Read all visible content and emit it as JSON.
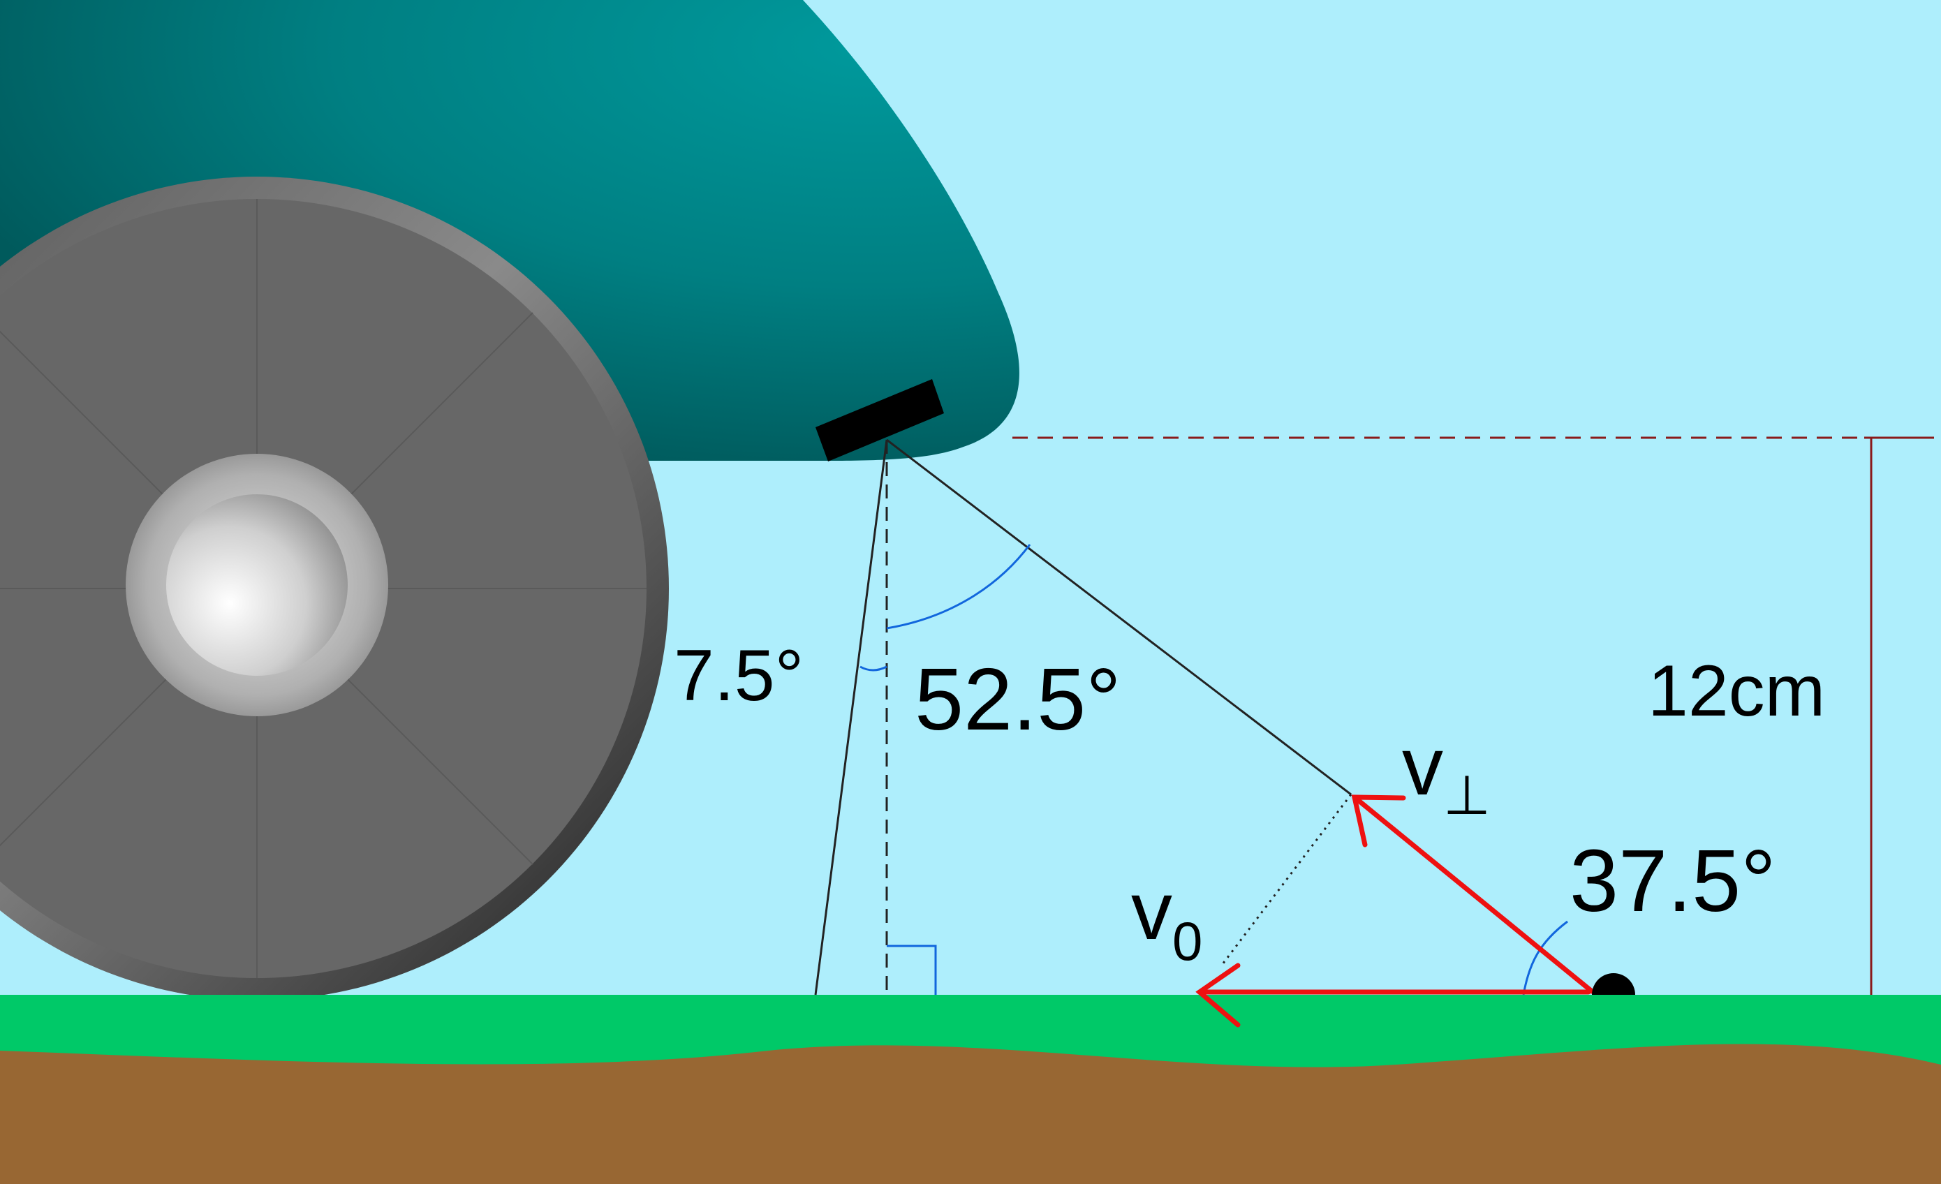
{
  "labels": {
    "angle_small": "7.5°",
    "angle_middle": "52.5°",
    "angle_ground": "37.5°",
    "height": "12cm",
    "v_perp_letter": "v",
    "v_perp_sub": "⊥",
    "v0_letter": "v",
    "v0_sub": "0"
  },
  "colors": {
    "sky": "#aeeefc",
    "car_body_dark": "#005a5c",
    "car_body_light": "#00999c",
    "tire_outer": "#333333",
    "tire_face": "#676767",
    "hubcap": "#c8c8c8",
    "grass": "#00c968",
    "soil": "#986733",
    "sensor": "#000000",
    "vector": "#ee1111",
    "angle_arc": "#1166dd",
    "guide_line": "#222222",
    "dashed_height": "#8a1a1a",
    "dimension": "#8a1a1a"
  },
  "icons": {
    "sensor": "sensor-block-icon",
    "object": "ground-object-icon",
    "wheel": "wheel-icon"
  }
}
